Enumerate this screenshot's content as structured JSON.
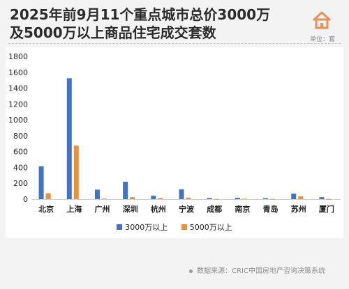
{
  "header": {
    "title_line1": "2025年前9月11个重点城市总价3000万",
    "title_line2": "及5000万以上商品住宅成交套数",
    "unit": "单位：套",
    "logo_icon": "house-logo-icon"
  },
  "footer": {
    "source": "数据来源：CRIC中国房地产咨询决策系统"
  },
  "colors": {
    "series1": "#4472c4",
    "series2": "#ed8f3a",
    "logo": "#e8915c"
  },
  "chart_data": {
    "type": "bar",
    "title": "2025年前9月11个重点城市总价3000万及5000万以上商品住宅成交套数",
    "xlabel": "",
    "ylabel": "",
    "unit": "单位：套",
    "ylim": [
      0,
      1800
    ],
    "yticks": [
      0,
      200,
      400,
      600,
      800,
      1000,
      1200,
      1400,
      1600,
      1800
    ],
    "grid": false,
    "legend": "bottom",
    "categories": [
      "北京",
      "上海",
      "广州",
      "深圳",
      "杭州",
      "宁波",
      "成都",
      "南京",
      "青岛",
      "苏州",
      "厦门"
    ],
    "series": [
      {
        "name": "3000万以上",
        "values": [
          415,
          1525,
          120,
          220,
          45,
          125,
          15,
          18,
          12,
          70,
          25
        ]
      },
      {
        "name": "5000万以上",
        "values": [
          75,
          675,
          8,
          25,
          15,
          20,
          3,
          5,
          3,
          35,
          3
        ]
      }
    ]
  }
}
